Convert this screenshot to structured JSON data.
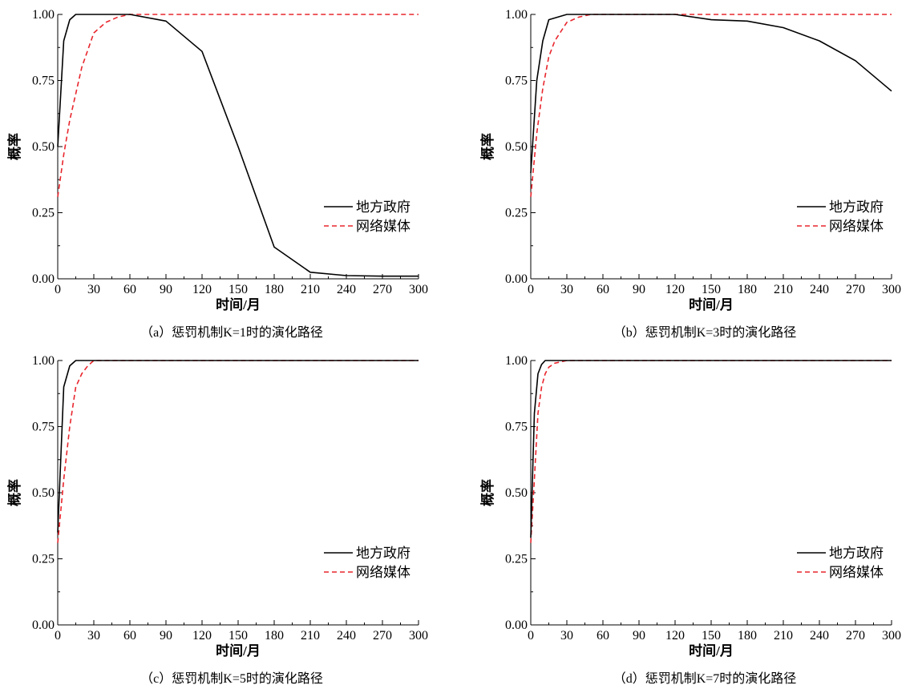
{
  "legend": [
    "地方政府",
    "网络媒体"
  ],
  "colors": {
    "government": "#000000",
    "media": "#e8262d"
  },
  "chart_data": [
    {
      "type": "line",
      "caption": "（a）惩罚机制K=1时的演化路径",
      "xlabel": "时间/月",
      "ylabel": "概率",
      "xlim": [
        0,
        300
      ],
      "ylim": [
        0,
        1
      ],
      "xticks": [
        "0",
        "30",
        "60",
        "90",
        "120",
        "150",
        "180",
        "210",
        "240",
        "270",
        "300"
      ],
      "yticks": [
        "0.00",
        "0.25",
        "0.50",
        "0.75",
        "1.00"
      ],
      "series": [
        {
          "name": "地方政府",
          "style": "solid",
          "x": [
            0,
            5,
            10,
            15,
            30,
            60,
            90,
            120,
            150,
            180,
            210,
            240,
            270,
            300
          ],
          "y": [
            0.5,
            0.9,
            0.98,
            1.0,
            1.0,
            1.0,
            0.975,
            0.86,
            0.5,
            0.12,
            0.025,
            0.012,
            0.01,
            0.01
          ]
        },
        {
          "name": "网络媒体",
          "style": "dashed",
          "x": [
            0,
            5,
            10,
            15,
            20,
            30,
            40,
            50,
            60,
            90,
            300
          ],
          "y": [
            0.31,
            0.47,
            0.6,
            0.7,
            0.8,
            0.93,
            0.97,
            0.99,
            1.0,
            1.0,
            1.0
          ]
        }
      ],
      "legend_position": "center-right"
    },
    {
      "type": "line",
      "caption": "（b）惩罚机制K=3时的演化路径",
      "xlabel": "时间/月",
      "ylabel": "概率",
      "xlim": [
        0,
        300
      ],
      "ylim": [
        0,
        1
      ],
      "xticks": [
        "0",
        "30",
        "60",
        "90",
        "120",
        "150",
        "180",
        "210",
        "240",
        "270",
        "300"
      ],
      "yticks": [
        "0.00",
        "0.25",
        "0.50",
        "0.75",
        "1.00"
      ],
      "series": [
        {
          "name": "地方政府",
          "style": "solid",
          "x": [
            0,
            5,
            10,
            15,
            30,
            60,
            90,
            120,
            150,
            180,
            210,
            240,
            270,
            300
          ],
          "y": [
            0.4,
            0.75,
            0.9,
            0.98,
            1.0,
            1.0,
            1.0,
            1.0,
            0.98,
            0.975,
            0.95,
            0.9,
            0.825,
            0.71
          ]
        },
        {
          "name": "网络媒体",
          "style": "dashed",
          "x": [
            0,
            5,
            10,
            15,
            20,
            30,
            40,
            50,
            60,
            300
          ],
          "y": [
            0.31,
            0.55,
            0.72,
            0.84,
            0.9,
            0.97,
            0.99,
            1.0,
            1.0,
            1.0
          ]
        }
      ],
      "legend_position": "center-right"
    },
    {
      "type": "line",
      "caption": "（c）惩罚机制K=5时的演化路径",
      "xlabel": "时间/月",
      "ylabel": "概率",
      "xlim": [
        0,
        300
      ],
      "ylim": [
        0,
        1
      ],
      "xticks": [
        "0",
        "30",
        "60",
        "90",
        "120",
        "150",
        "180",
        "210",
        "240",
        "270",
        "300"
      ],
      "yticks": [
        "0.00",
        "0.25",
        "0.50",
        "0.75",
        "1.00"
      ],
      "series": [
        {
          "name": "地方政府",
          "style": "solid",
          "x": [
            0,
            5,
            10,
            15,
            30,
            300
          ],
          "y": [
            0.35,
            0.9,
            0.98,
            1.0,
            1.0,
            1.0
          ]
        },
        {
          "name": "网络媒体",
          "style": "dashed",
          "x": [
            0,
            5,
            10,
            15,
            20,
            25,
            30,
            40,
            300
          ],
          "y": [
            0.31,
            0.55,
            0.75,
            0.9,
            0.95,
            0.98,
            1.0,
            1.0,
            1.0
          ]
        }
      ],
      "legend_position": "center-right"
    },
    {
      "type": "line",
      "caption": "（d）惩罚机制K=7时的演化路径",
      "xlabel": "时间/月",
      "ylabel": "概率",
      "xlim": [
        0,
        300
      ],
      "ylim": [
        0,
        1
      ],
      "xticks": [
        "0",
        "30",
        "60",
        "90",
        "120",
        "150",
        "180",
        "210",
        "240",
        "270",
        "300"
      ],
      "yticks": [
        "0.00",
        "0.25",
        "0.50",
        "0.75",
        "1.00"
      ],
      "series": [
        {
          "name": "地方政府",
          "style": "solid",
          "x": [
            0,
            3,
            6,
            9,
            12,
            20,
            300
          ],
          "y": [
            0.33,
            0.8,
            0.95,
            0.985,
            1.0,
            1.0,
            1.0
          ]
        },
        {
          "name": "网络媒体",
          "style": "dashed",
          "x": [
            0,
            3,
            6,
            9,
            12,
            15,
            20,
            30,
            300
          ],
          "y": [
            0.31,
            0.55,
            0.8,
            0.9,
            0.95,
            0.975,
            0.99,
            1.0,
            1.0
          ]
        }
      ],
      "legend_position": "center-right"
    }
  ]
}
